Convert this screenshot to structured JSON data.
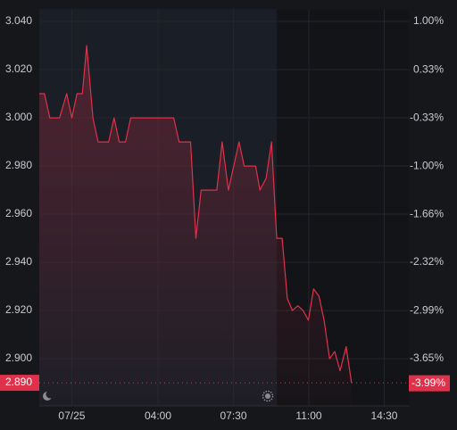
{
  "chart_data": {
    "type": "line",
    "x": [
      -1.51,
      -1.27,
      -1.02,
      -0.57,
      -0.24,
      0,
      0.24,
      0.49,
      0.69,
      0.98,
      1.22,
      1.71,
      1.96,
      2.2,
      2.49,
      2.73,
      4.04,
      4.73,
      4.98,
      5.51,
      5.76,
      6.0,
      6.73,
      6.98,
      7.27,
      7.76,
      8.0,
      8.53,
      8.73,
      9.02,
      9.27,
      9.51,
      9.76,
      10.0,
      10.24,
      10.49,
      10.73,
      10.98,
      11.22,
      11.47,
      11.71,
      11.96,
      12.2,
      12.45,
      12.73,
      12.98
    ],
    "series": [
      {
        "color": "#e0314b",
        "values": [
          3.01,
          3.01,
          3.0,
          3.0,
          3.01,
          3.0,
          3.01,
          3.01,
          3.03,
          3.0,
          2.99,
          2.99,
          3.0,
          2.99,
          2.99,
          3.0,
          3.0,
          3.0,
          2.99,
          2.99,
          2.95,
          2.97,
          2.97,
          2.99,
          2.97,
          2.99,
          2.98,
          2.98,
          2.97,
          2.975,
          2.99,
          2.95,
          2.95,
          2.925,
          2.92,
          2.922,
          2.92,
          2.916,
          2.929,
          2.926,
          2.916,
          2.9,
          2.903,
          2.895,
          2.905,
          2.89
        ]
      }
    ],
    "xlim": [
      -1.51,
      15.64
    ],
    "xticks": [
      {
        "value": 0,
        "label": "07/25"
      },
      {
        "value": 4,
        "label": "04:00"
      },
      {
        "value": 7.5,
        "label": "07:30"
      },
      {
        "value": 11,
        "label": "11:00"
      },
      {
        "value": 14.5,
        "label": "14:30"
      }
    ],
    "ylim": [
      2.8804,
      3.0452
    ],
    "yticks": [
      {
        "value": 3.04,
        "label": "3.040"
      },
      {
        "value": 3.02,
        "label": "3.020"
      },
      {
        "value": 3.0,
        "label": "3.000"
      },
      {
        "value": 2.98,
        "label": "2.980"
      },
      {
        "value": 2.96,
        "label": "2.960"
      },
      {
        "value": 2.94,
        "label": "2.940"
      },
      {
        "value": 2.92,
        "label": "2.920"
      },
      {
        "value": 2.9,
        "label": "2.900"
      }
    ],
    "y2lim": [
      -4.302,
      1.172
    ],
    "y2ticks": [
      {
        "value": 1.0,
        "label": "1.00%"
      },
      {
        "value": 0.33,
        "label": "0.33%"
      },
      {
        "value": -0.33,
        "label": "-0.33%"
      },
      {
        "value": -1.0,
        "label": "-1.00%"
      },
      {
        "value": -1.66,
        "label": "-1.66%"
      },
      {
        "value": -2.32,
        "label": "-2.32%"
      },
      {
        "value": -2.99,
        "label": "-2.99%"
      },
      {
        "value": -3.65,
        "label": "-3.65%"
      }
    ],
    "last_price": {
      "value": 2.89,
      "label": "2.890"
    },
    "last_change": {
      "value": -3.99,
      "label": "-3.99%"
    },
    "grid": true
  }
}
